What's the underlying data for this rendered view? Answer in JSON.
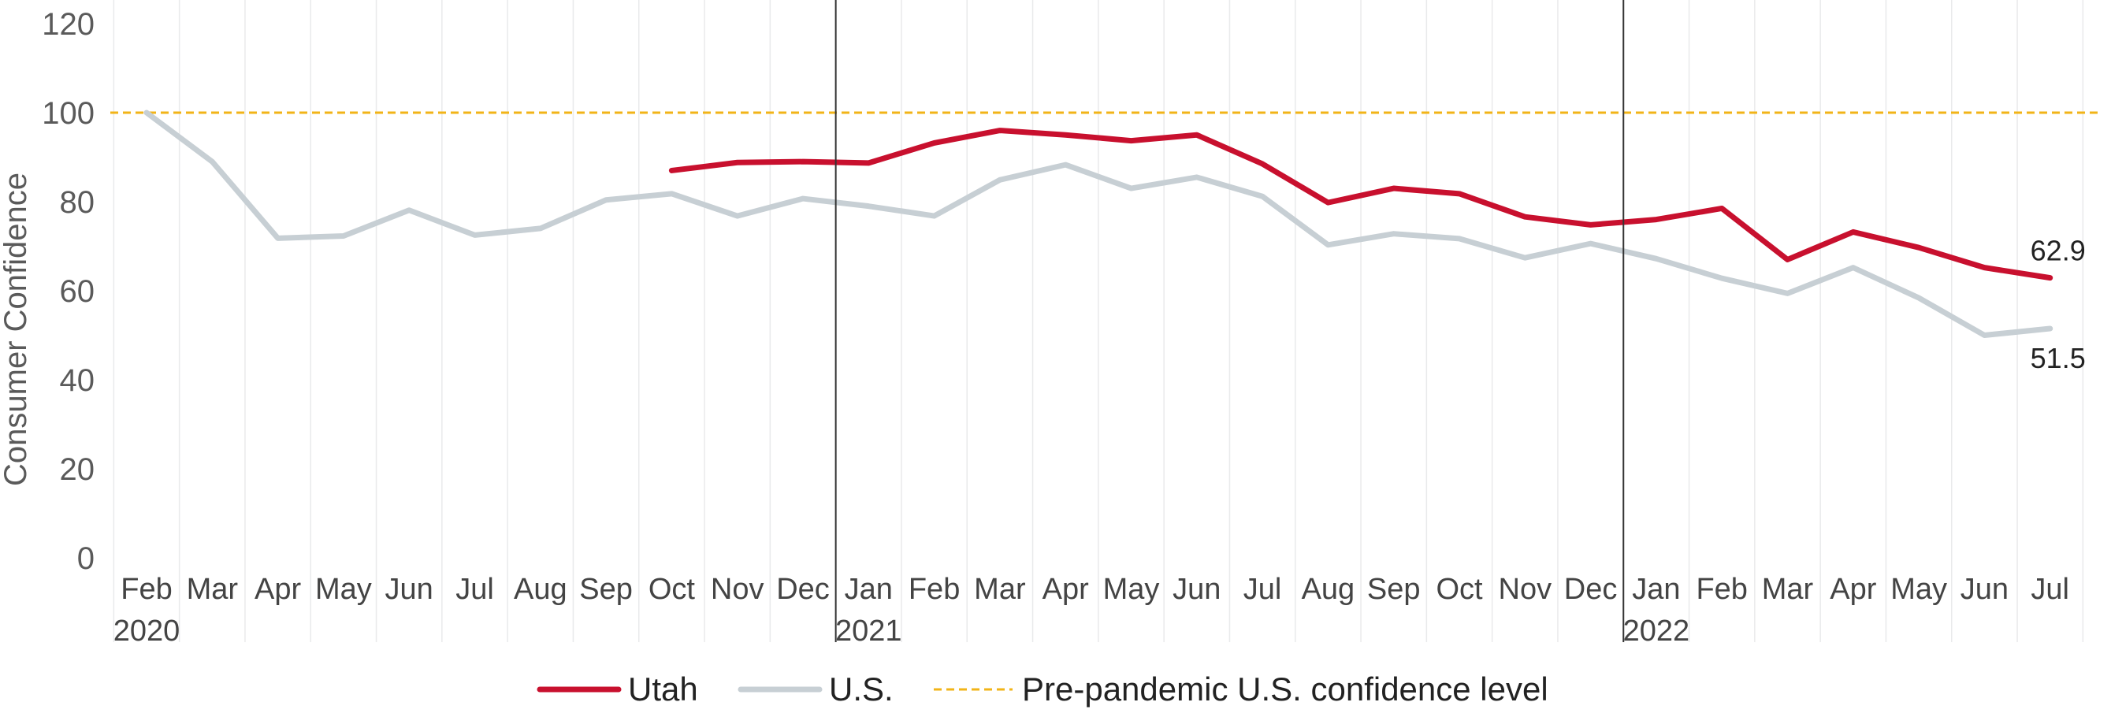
{
  "chart_data": {
    "type": "line",
    "title": "",
    "ylabel": "Consumer Confidence",
    "xlabel": "",
    "ylim": [
      0,
      120
    ],
    "yticks": [
      0,
      20,
      40,
      60,
      80,
      100,
      120
    ],
    "grid": "vertical",
    "legend_position": "bottom",
    "categories": [
      "Feb",
      "Mar",
      "Apr",
      "May",
      "Jun",
      "Jul",
      "Aug",
      "Sep",
      "Oct",
      "Nov",
      "Dec",
      "Jan",
      "Feb",
      "Mar",
      "Apr",
      "May",
      "Jun",
      "Jul",
      "Aug",
      "Sep",
      "Oct",
      "Nov",
      "Dec",
      "Jan",
      "Feb",
      "Mar",
      "Apr",
      "May",
      "Jun",
      "Jul"
    ],
    "year_labels": [
      {
        "index": 0,
        "label": "2020"
      },
      {
        "index": 11,
        "label": "2021"
      },
      {
        "index": 23,
        "label": "2022"
      }
    ],
    "year_dividers_after": [
      10,
      22
    ],
    "series": [
      {
        "name": "Utah",
        "color": "#c8102e",
        "values": [
          null,
          null,
          null,
          null,
          null,
          null,
          null,
          null,
          87.0,
          88.8,
          89.0,
          88.7,
          93.2,
          96.0,
          95.0,
          93.7,
          95.0,
          88.5,
          79.8,
          83.0,
          81.8,
          76.6,
          74.8,
          76.0,
          78.5,
          67.0,
          73.2,
          69.7,
          65.2,
          62.9
        ],
        "end_label": "62.9"
      },
      {
        "name": "U.S.",
        "color": "#c7cfd4",
        "values": [
          100.0,
          89.0,
          71.8,
          72.3,
          78.1,
          72.5,
          74.0,
          80.4,
          81.8,
          76.8,
          80.7,
          79.0,
          76.8,
          84.9,
          88.3,
          83.0,
          85.5,
          81.2,
          70.3,
          72.8,
          71.7,
          67.4,
          70.6,
          67.2,
          62.8,
          59.4,
          65.2,
          58.4,
          50.0,
          51.5
        ],
        "end_label": "51.5"
      }
    ],
    "reference_line": {
      "name": "Pre-pandemic U.S. confidence level",
      "value": 100,
      "color": "#f2b418",
      "style": "dashed"
    }
  }
}
